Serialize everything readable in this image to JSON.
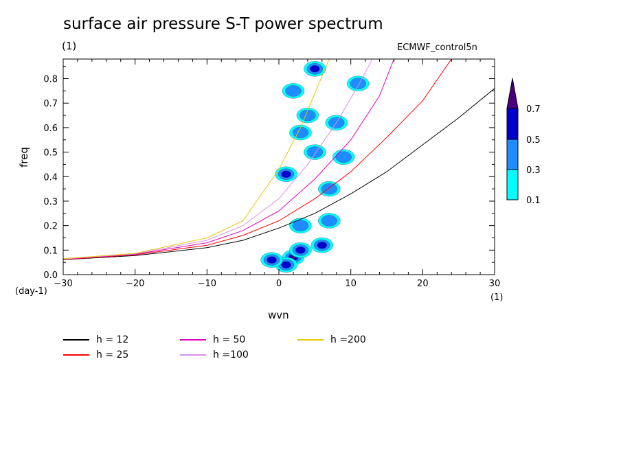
{
  "title": "surface air pressure S-T power spectrum",
  "y_unit": "(1)",
  "experiment": "ECMWF_control5n",
  "y_axis_unit": "(day-1)",
  "x_axis_unit": "(1)",
  "chart_data": {
    "type": "heatmap",
    "xlabel": "wvn",
    "ylabel": "freq",
    "xlim": [
      -30,
      30
    ],
    "ylim": [
      0,
      0.88
    ],
    "xticks": [
      -30,
      -20,
      -10,
      0,
      10,
      20,
      30
    ],
    "yticks": [
      0.0,
      0.1,
      0.2,
      0.3,
      0.4,
      0.5,
      0.6,
      0.7,
      0.8
    ],
    "colorbar": {
      "levels": [
        "0.1",
        "0.3",
        "0.5",
        "0.7"
      ],
      "colors": [
        "#00ffff",
        "#1e8cff",
        "#0000cd",
        "#4b0082"
      ]
    },
    "contours": [
      {
        "x": 2,
        "y": 0.07,
        "level": 3
      },
      {
        "x": 1,
        "y": 0.04,
        "level": 2
      },
      {
        "x": 3,
        "y": 0.1,
        "level": 2
      },
      {
        "x": -1,
        "y": 0.06,
        "level": 2
      },
      {
        "x": 6,
        "y": 0.12,
        "level": 2
      },
      {
        "x": 1,
        "y": 0.41,
        "level": 2
      },
      {
        "x": 5,
        "y": 0.84,
        "level": 2
      },
      {
        "x": 3,
        "y": 0.58,
        "level": 1
      },
      {
        "x": 5,
        "y": 0.5,
        "level": 1
      },
      {
        "x": 7,
        "y": 0.35,
        "level": 1
      },
      {
        "x": 7,
        "y": 0.22,
        "level": 1
      },
      {
        "x": 3,
        "y": 0.2,
        "level": 1
      },
      {
        "x": 8,
        "y": 0.62,
        "level": 1
      },
      {
        "x": 9,
        "y": 0.48,
        "level": 1
      },
      {
        "x": 4,
        "y": 0.65,
        "level": 1
      },
      {
        "x": 11,
        "y": 0.78,
        "level": 1
      },
      {
        "x": 2,
        "y": 0.75,
        "level": 1
      }
    ],
    "series": [
      {
        "name": "h = 12",
        "color": "#000000",
        "h": 12,
        "x": [
          -30,
          -20,
          -10,
          -5,
          0,
          5,
          10,
          15,
          20,
          25,
          30
        ],
        "y": [
          0.061,
          0.078,
          0.11,
          0.14,
          0.19,
          0.25,
          0.33,
          0.42,
          0.53,
          0.64,
          0.76
        ]
      },
      {
        "name": "h = 25",
        "color": "#ff0000",
        "h": 25,
        "x": [
          -30,
          -20,
          -10,
          -5,
          0,
          5,
          10,
          15,
          20,
          24
        ],
        "y": [
          0.062,
          0.081,
          0.12,
          0.16,
          0.22,
          0.31,
          0.42,
          0.56,
          0.71,
          0.88
        ]
      },
      {
        "name": "h = 50",
        "color": "#e000c0",
        "h": 50,
        "x": [
          -30,
          -20,
          -10,
          -5,
          0,
          5,
          10,
          14,
          16
        ],
        "y": [
          0.063,
          0.083,
          0.13,
          0.18,
          0.26,
          0.39,
          0.55,
          0.73,
          0.88
        ]
      },
      {
        "name": "h =100",
        "color": "#d890e8",
        "h": 100,
        "x": [
          -30,
          -20,
          -10,
          -5,
          0,
          4,
          8,
          11,
          13
        ],
        "y": [
          0.064,
          0.085,
          0.14,
          0.2,
          0.31,
          0.45,
          0.62,
          0.77,
          0.88
        ]
      },
      {
        "name": "h =200",
        "color": "#e8c800",
        "h": 200,
        "x": [
          -30,
          -20,
          -10,
          -5,
          0,
          3,
          5,
          7
        ],
        "y": [
          0.065,
          0.087,
          0.15,
          0.22,
          0.43,
          0.6,
          0.74,
          0.88
        ]
      }
    ]
  }
}
